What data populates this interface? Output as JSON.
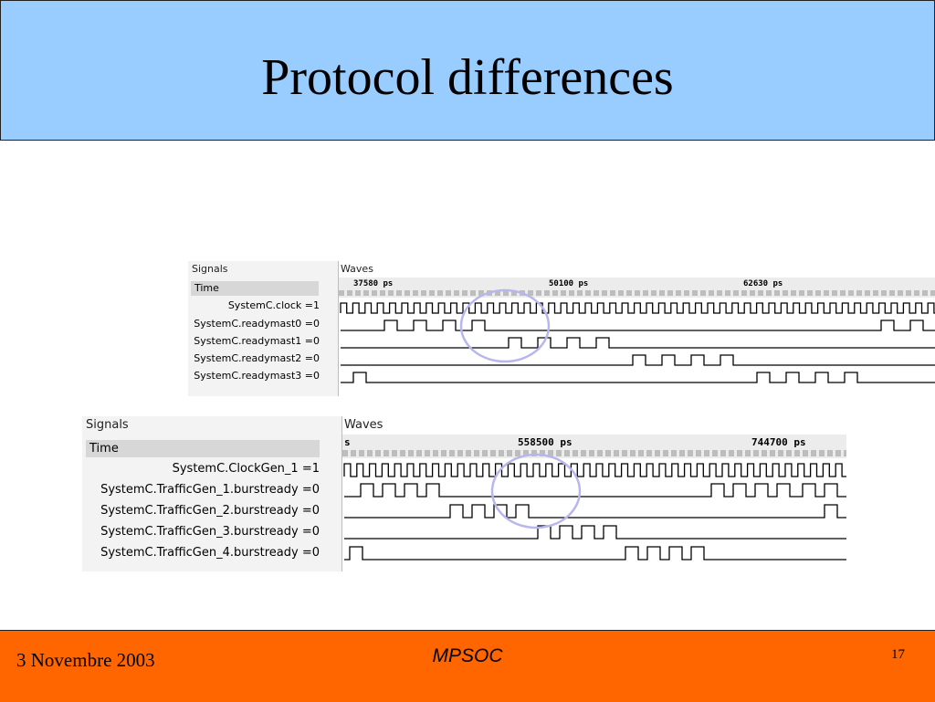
{
  "slide": {
    "title": "Protocol differences",
    "footer_date": "3 Novembre 2003",
    "footer_center": "MPSOC",
    "page_number": "17"
  },
  "panel1": {
    "signals_caption": "Signals",
    "waves_caption": "Waves",
    "time_label": "Time",
    "ruler": [
      "37580 ps",
      "50100 ps",
      "62630 ps"
    ],
    "signals": [
      "SystemC.clock =1",
      "SystemC.readymast0 =0",
      "SystemC.readymast1 =0",
      "SystemC.readymast2 =0",
      "SystemC.readymast3 =0"
    ]
  },
  "panel2": {
    "signals_caption": "Signals",
    "waves_caption": "Waves",
    "time_label": "Time",
    "ruler": [
      "s",
      "558500 ps",
      "744700 ps"
    ],
    "signals": [
      "SystemC.ClockGen_1 =1",
      "SystemC.TrafficGen_1.burstready =0",
      "SystemC.TrafficGen_2.burstready =0",
      "SystemC.TrafficGen_3.burstready =0",
      "SystemC.TrafficGen_4.burstready =0"
    ]
  },
  "colors": {
    "title_bg": "#99ccff",
    "footer_bg": "#ff6600",
    "highlight": "#b7b7ee"
  },
  "icons": [
    "highlight-circle-icon"
  ]
}
